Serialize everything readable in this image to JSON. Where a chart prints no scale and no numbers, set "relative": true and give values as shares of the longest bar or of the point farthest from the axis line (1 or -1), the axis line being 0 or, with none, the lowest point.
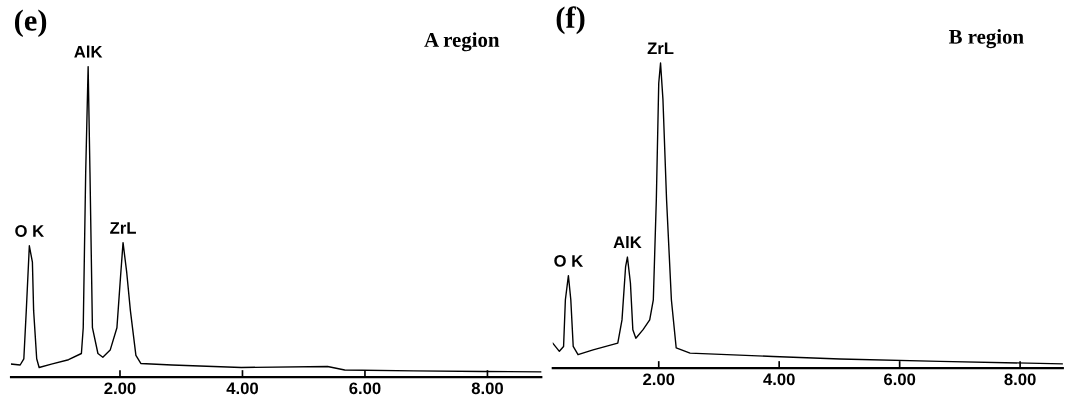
{
  "chart_data": [
    {
      "type": "line",
      "title": "(e)",
      "relative": true,
      "tick_labels": "x",
      "grid": false,
      "legend": false,
      "marker": "none",
      "line_style": "solid",
      "xlim": [
        0.22,
        8.88
      ],
      "xticks": [
        {
          "value": 2,
          "label": "2.00"
        },
        {
          "value": 4,
          "label": "4.00"
        },
        {
          "value": 6,
          "label": "6.00"
        },
        {
          "value": 8,
          "label": "8.00"
        }
      ],
      "annotations": [
        {
          "text": "O K",
          "x": 0.52,
          "y": 0.423
        },
        {
          "text": "AlK",
          "x": 1.48,
          "y": 1.0
        },
        {
          "text": "ZrL",
          "x": 2.05,
          "y": 0.433
        },
        "A region"
      ],
      "series": [
        {
          "color": "#000000",
          "x": [
            0.22,
            0.37,
            0.43,
            0.47,
            0.52,
            0.57,
            0.59,
            0.64,
            0.68,
            0.88,
            1.16,
            1.37,
            1.4,
            1.44,
            1.48,
            1.51,
            1.55,
            1.64,
            1.72,
            1.84,
            1.95,
            2.01,
            2.05,
            2.11,
            2.17,
            2.26,
            2.34,
            2.85,
            3.98,
            5.39,
            5.67,
            6.8,
            7.93,
            8.88
          ],
          "values": [
            0.042,
            0.039,
            0.059,
            0.214,
            0.423,
            0.37,
            0.214,
            0.059,
            0.031,
            0.042,
            0.056,
            0.076,
            0.159,
            0.659,
            1.0,
            0.659,
            0.159,
            0.076,
            0.064,
            0.087,
            0.159,
            0.326,
            0.433,
            0.337,
            0.214,
            0.07,
            0.044,
            0.039,
            0.031,
            0.034,
            0.023,
            0.02,
            0.018,
            0.017
          ]
        }
      ]
    },
    {
      "type": "line",
      "title": "(f)",
      "relative": true,
      "tick_labels": "x",
      "grid": false,
      "legend": false,
      "marker": "none",
      "line_style": "solid",
      "xlim": [
        0.24,
        8.71
      ],
      "xticks": [
        {
          "value": 2,
          "label": "2.00"
        },
        {
          "value": 4,
          "label": "4.00"
        },
        {
          "value": 6,
          "label": "6.00"
        },
        {
          "value": 8,
          "label": "8.00"
        }
      ],
      "annotations": [
        {
          "text": "O K",
          "x": 0.5,
          "y": 0.303
        },
        {
          "text": "AlK",
          "x": 1.48,
          "y": 0.364
        },
        {
          "text": "ZrL",
          "x": 2.03,
          "y": 1.0
        },
        "B region"
      ],
      "series": [
        {
          "color": "#000000",
          "x": [
            0.24,
            0.35,
            0.42,
            0.45,
            0.5,
            0.54,
            0.58,
            0.66,
            0.91,
            1.32,
            1.39,
            1.45,
            1.48,
            1.53,
            1.57,
            1.62,
            1.74,
            1.85,
            1.91,
            1.96,
            2.0,
            2.03,
            2.07,
            2.13,
            2.21,
            2.29,
            2.52,
            3.9,
            5.01,
            6.67,
            8.71
          ],
          "values": [
            0.082,
            0.055,
            0.071,
            0.224,
            0.303,
            0.224,
            0.071,
            0.044,
            0.06,
            0.082,
            0.158,
            0.333,
            0.364,
            0.279,
            0.126,
            0.098,
            0.126,
            0.158,
            0.224,
            0.552,
            0.934,
            1.0,
            0.88,
            0.552,
            0.224,
            0.066,
            0.049,
            0.038,
            0.03,
            0.022,
            0.014
          ]
        }
      ]
    }
  ]
}
